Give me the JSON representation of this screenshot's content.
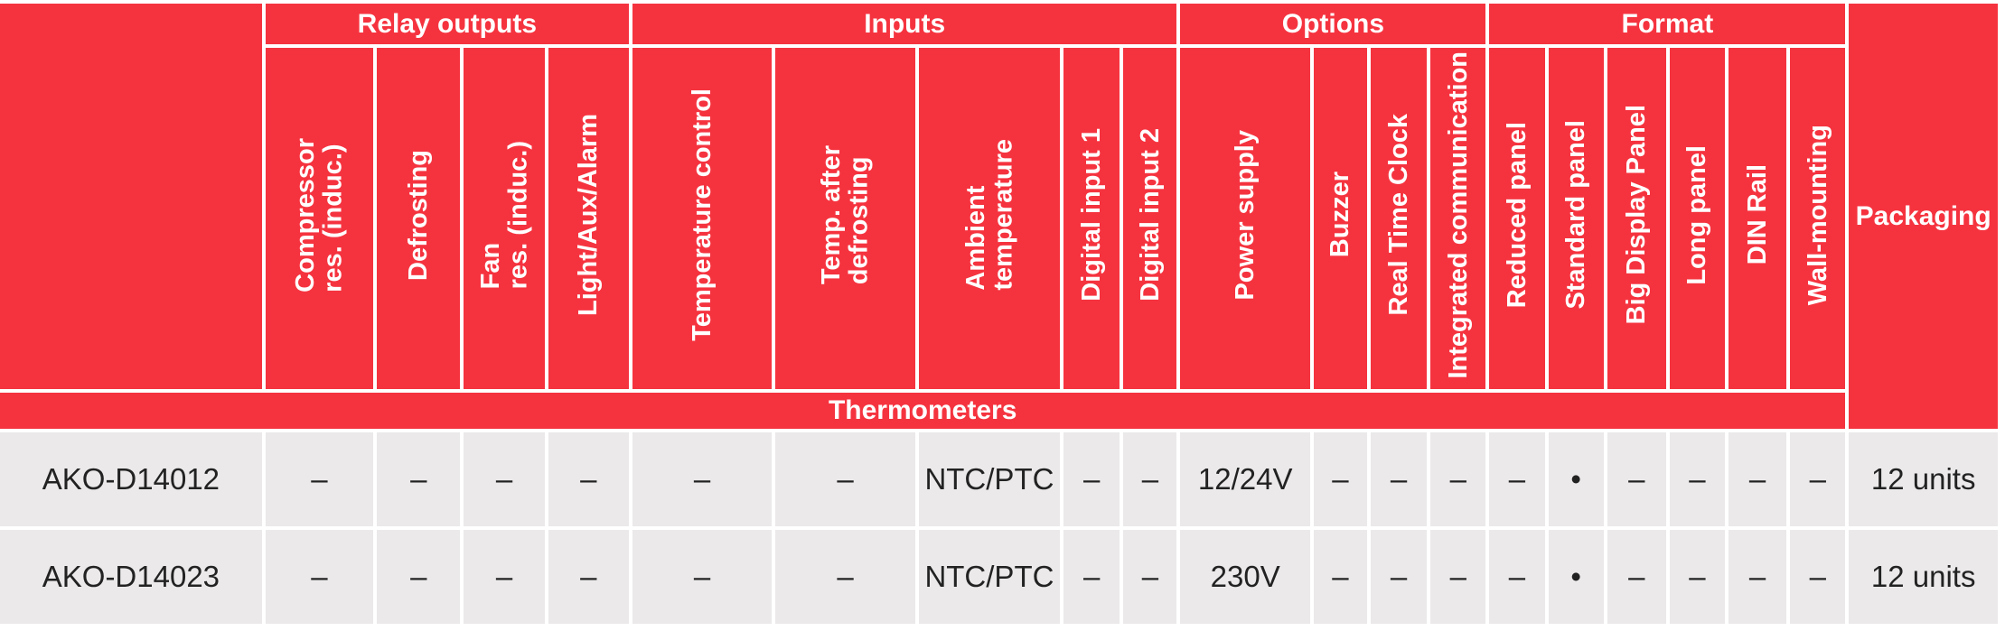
{
  "table": {
    "groups": [
      {
        "label": "Relay outputs",
        "columns": [
          "Compressor\nres. (induc.)",
          "Defrosting",
          "Fan\nres. (induc.)",
          "Light/Aux/Alarm"
        ]
      },
      {
        "label": "Inputs",
        "columns": [
          "Temperature control",
          "Temp. after\ndefrosting",
          "Ambient\ntemperature",
          "Digital input 1",
          "Digital input 2"
        ]
      },
      {
        "label": "Options",
        "columns": [
          "Power supply",
          "Buzzer",
          "Real Time Clock",
          "Integrated communication"
        ]
      },
      {
        "label": "Format",
        "columns": [
          "Reduced panel",
          "Standard panel",
          "Big Display Panel",
          "Long panel",
          "DIN Rail",
          "Wall-mounting"
        ]
      }
    ],
    "packaging_header": "Packaging",
    "section": "Thermometers",
    "rows": [
      {
        "model": "AKO-D14012",
        "cells": [
          "–",
          "–",
          "–",
          "–",
          "–",
          "–",
          "NTC/PTC",
          "–",
          "–",
          "12/24V",
          "–",
          "–",
          "–",
          "–",
          "•",
          "–",
          "–",
          "–",
          "–"
        ],
        "packaging": "12 units"
      },
      {
        "model": "AKO-D14023",
        "cells": [
          "–",
          "–",
          "–",
          "–",
          "–",
          "–",
          "NTC/PTC",
          "–",
          "–",
          "230V",
          "–",
          "–",
          "–",
          "–",
          "•",
          "–",
          "–",
          "–",
          "–"
        ],
        "packaging": "12 units"
      }
    ]
  }
}
